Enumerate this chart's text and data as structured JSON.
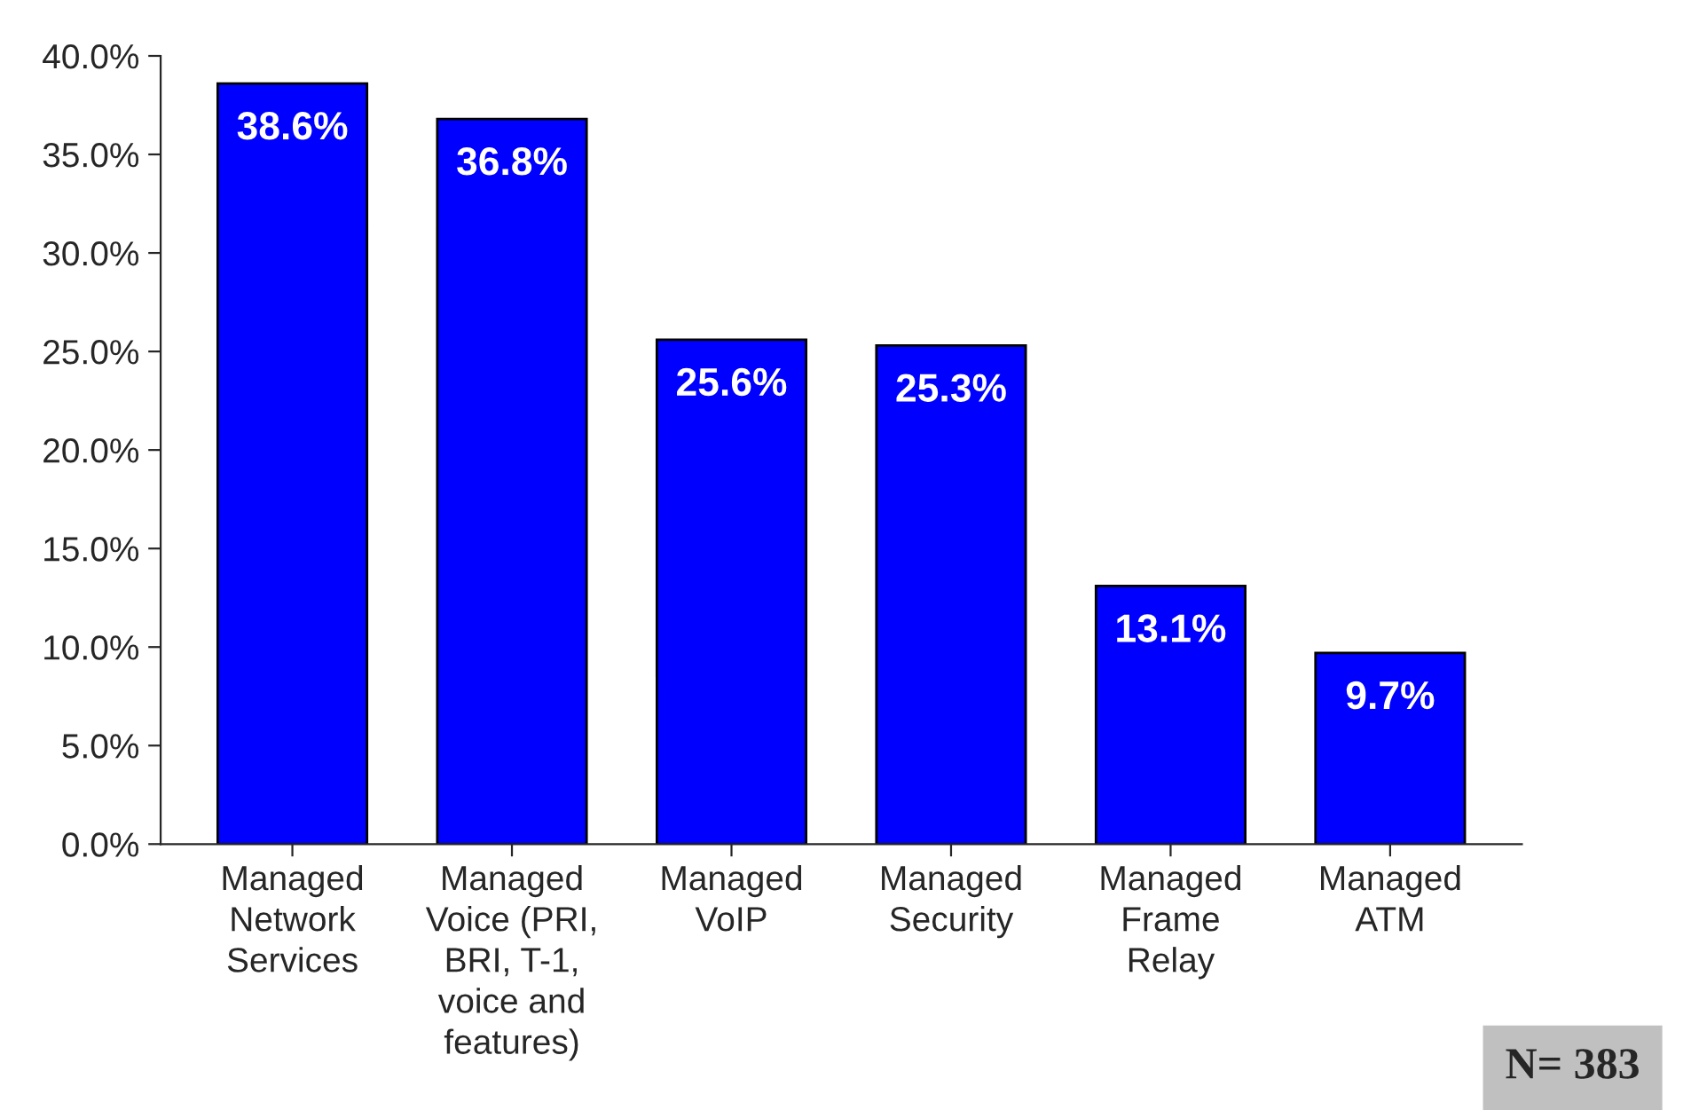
{
  "chart_data": {
    "type": "bar",
    "categories": [
      "Managed\nNetwork\nServices",
      "Managed\nVoice (PRI,\nBRI, T-1,\nvoice and\nfeatures)",
      "Managed\nVoIP",
      "Managed\nSecurity",
      "Managed\nFrame\nRelay",
      "Managed\nATM"
    ],
    "values": [
      38.6,
      36.8,
      25.6,
      25.3,
      13.1,
      9.7
    ],
    "value_labels": [
      "38.6%",
      "36.8%",
      "25.6%",
      "25.3%",
      "13.1%",
      "9.7%"
    ],
    "color": "#0000ff",
    "ylim": [
      0,
      40
    ],
    "yticks": [
      {
        "value": 0,
        "label": "0.0%"
      },
      {
        "value": 5,
        "label": "5.0%"
      },
      {
        "value": 10,
        "label": "10.0%"
      },
      {
        "value": 15,
        "label": "15.0%"
      },
      {
        "value": 20,
        "label": "20.0%"
      },
      {
        "value": 25,
        "label": "25.0%"
      },
      {
        "value": 30,
        "label": "30.0%"
      },
      {
        "value": 35,
        "label": "35.0%"
      },
      {
        "value": 40,
        "label": "40.0%"
      }
    ],
    "annotations": [
      "N= 383"
    ],
    "grid": false,
    "legend": false
  }
}
